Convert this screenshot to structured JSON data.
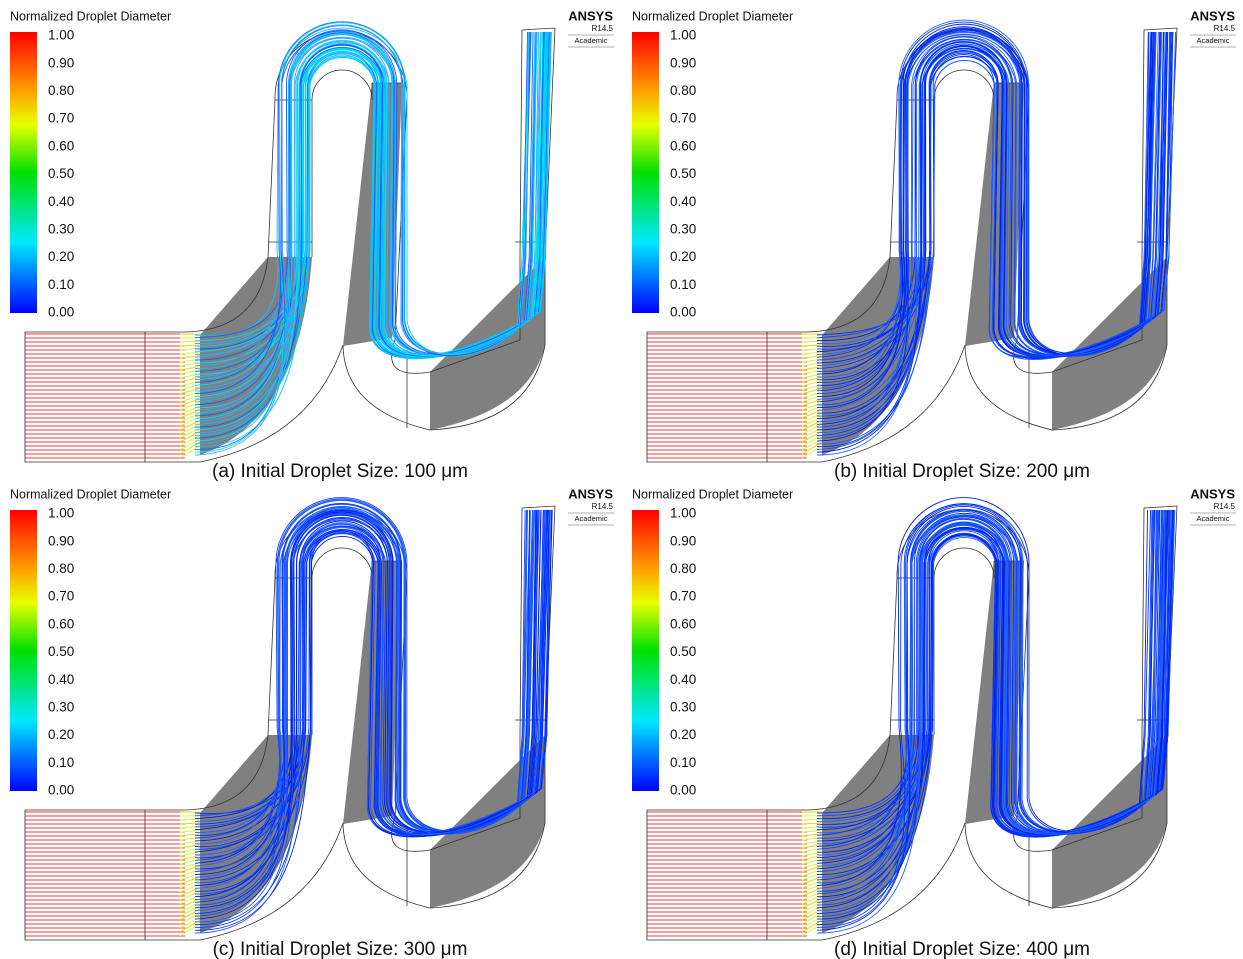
{
  "panels": [
    {
      "caption": "(a) Initial Droplet Size: 100 μm",
      "legend": {
        "title": "Normalized Droplet Diameter",
        "ticks": [
          "1.00",
          "0.90",
          "0.80",
          "0.70",
          "0.60",
          "0.50",
          "0.40",
          "0.30",
          "0.20",
          "0.10",
          "0.00"
        ]
      },
      "logo": {
        "name": "ANSYS",
        "version": "R14.5",
        "edition": "Academic"
      }
    },
    {
      "caption": "(b) Initial Droplet Size: 200 μm",
      "legend": {
        "title": "Normalized Droplet Diameter",
        "ticks": [
          "1.00",
          "0.90",
          "0.80",
          "0.70",
          "0.60",
          "0.50",
          "0.40",
          "0.30",
          "0.20",
          "0.10",
          "0.00"
        ]
      },
      "logo": {
        "name": "ANSYS",
        "version": "R14.5",
        "edition": "Academic"
      }
    },
    {
      "caption": "(c) Initial Droplet Size: 300 μm",
      "legend": {
        "title": "Normalized Droplet Diameter",
        "ticks": [
          "1.00",
          "0.90",
          "0.80",
          "0.70",
          "0.60",
          "0.50",
          "0.40",
          "0.30",
          "0.20",
          "0.10",
          "0.00"
        ]
      },
      "logo": {
        "name": "ANSYS",
        "version": "R14.5",
        "edition": "Academic"
      }
    },
    {
      "caption": "(d) Initial Droplet Size: 400 μm",
      "legend": {
        "title": "Normalized Droplet Diameter",
        "ticks": [
          "1.00",
          "0.90",
          "0.80",
          "0.70",
          "0.60",
          "0.50",
          "0.40",
          "0.30",
          "0.20",
          "0.10",
          "0.00"
        ]
      },
      "logo": {
        "name": "ANSYS",
        "version": "R14.5",
        "edition": "Academic"
      }
    }
  ]
}
